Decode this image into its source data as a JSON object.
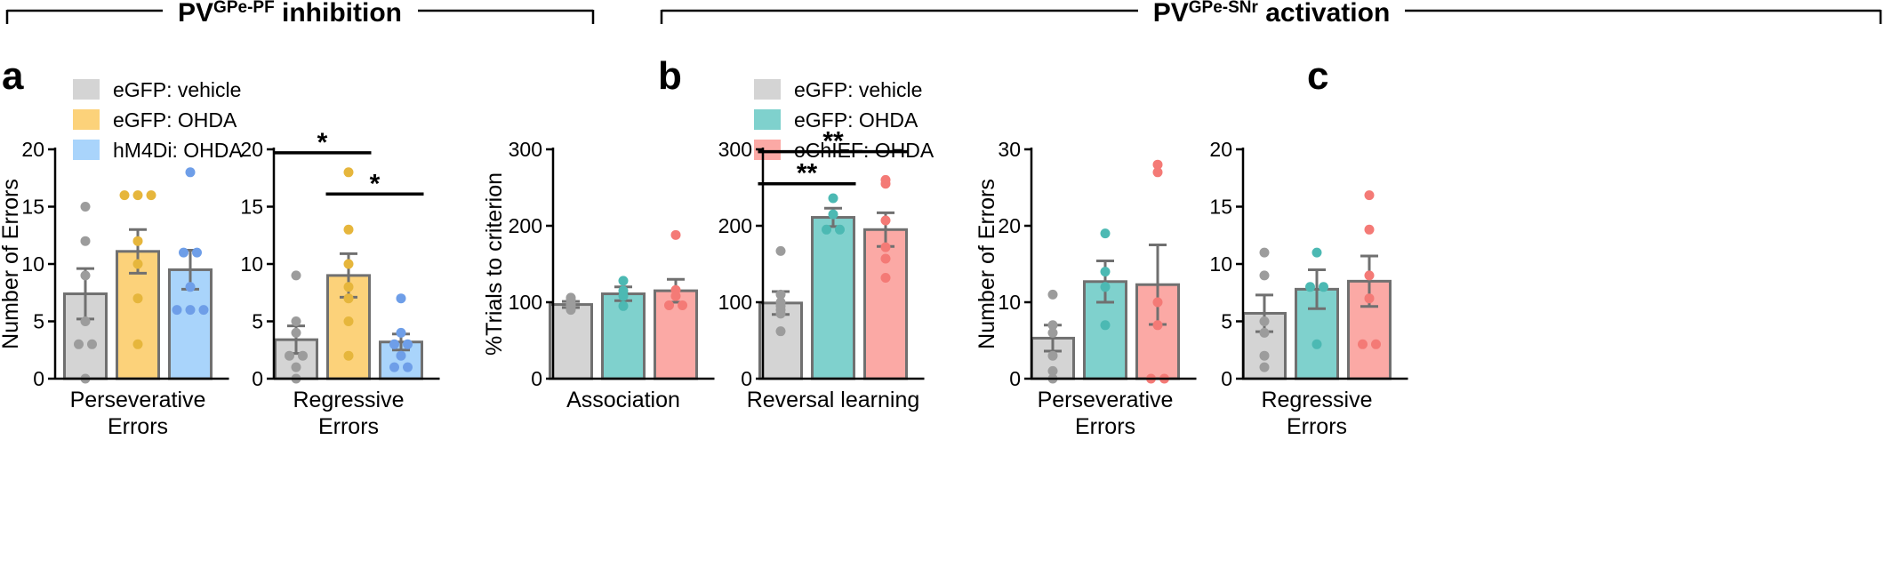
{
  "colors": {
    "egfp_vehicle": "#d4d4d4",
    "egfp_ohda_a": "#fcd27a",
    "hm4di_ohda": "#a9d4fb",
    "egfp_ohda_b": "#7fd1cd",
    "ochief_ohda": "#fba9a5",
    "dot_grey": "#9c9c9c",
    "dot_yellow": "#e6b63c",
    "dot_blue": "#6e9ee8",
    "dot_teal": "#4cb9b3",
    "dot_red": "#f47a76",
    "bar_edge": "#707070",
    "axis": "#000000"
  },
  "sections": [
    {
      "title": "PV",
      "superscript": "GPe-PF",
      "suffix": " inhibition"
    },
    {
      "title": "PV",
      "superscript": "GPe-SNr",
      "suffix": " activation"
    }
  ],
  "panel_letters": [
    "a",
    "b",
    "c"
  ],
  "legends": [
    {
      "items": [
        {
          "label": "eGFP: vehicle",
          "color_key": "egfp_vehicle"
        },
        {
          "label": "eGFP: OHDA",
          "color_key": "egfp_ohda_a"
        },
        {
          "label": "hM4Di: OHDA",
          "color_key": "hm4di_ohda"
        }
      ]
    },
    {
      "items": [
        {
          "label": "eGFP: vehicle",
          "color_key": "egfp_vehicle"
        },
        {
          "label": "eGFP: OHDA",
          "color_key": "egfp_ohda_b"
        },
        {
          "label": "oChIEF: OHDA",
          "color_key": "ochief_ohda"
        }
      ]
    }
  ],
  "chart_data": [
    {
      "type": "bar",
      "panel": "a",
      "ylabel": "Number of Errors",
      "xlabel_lines": [
        "Perseverative",
        "Errors"
      ],
      "ylim": [
        0,
        20
      ],
      "yticks": [
        0,
        5,
        10,
        15,
        20
      ],
      "series": [
        {
          "name": "eGFP: vehicle",
          "mean": 7.4,
          "sem": 2.2,
          "points": [
            15,
            12,
            9,
            5,
            3,
            3,
            0
          ]
        },
        {
          "name": "eGFP: OHDA",
          "mean": 11.1,
          "sem": 1.9,
          "points": [
            16,
            16,
            16,
            12,
            10,
            7,
            3
          ]
        },
        {
          "name": "hM4Di: OHDA",
          "mean": 9.5,
          "sem": 1.7,
          "points": [
            18,
            11,
            11,
            8,
            6,
            6,
            6
          ]
        }
      ],
      "significance": []
    },
    {
      "type": "bar",
      "panel": "a",
      "ylabel": "",
      "xlabel_lines": [
        "Regressive",
        "Errors"
      ],
      "ylim": [
        0,
        20
      ],
      "yticks": [
        0,
        5,
        10,
        15,
        20
      ],
      "series": [
        {
          "name": "eGFP: vehicle",
          "mean": 3.4,
          "sem": 1.2,
          "points": [
            9,
            5,
            4,
            2,
            2,
            1,
            0
          ]
        },
        {
          "name": "eGFP: OHDA",
          "mean": 9.0,
          "sem": 1.9,
          "points": [
            18,
            13,
            10,
            8,
            7,
            5,
            2
          ]
        },
        {
          "name": "hM4Di: OHDA",
          "mean": 3.2,
          "sem": 0.7,
          "points": [
            7,
            4,
            3,
            3,
            2,
            1,
            1
          ]
        }
      ],
      "significance": [
        {
          "from": 0,
          "to": 1,
          "y": 19.7,
          "label": "*"
        },
        {
          "from": 1,
          "to": 2,
          "y": 16.1,
          "label": "*"
        }
      ]
    },
    {
      "type": "bar",
      "panel": "b",
      "ylabel": "%Trials to criterion",
      "xlabel_lines": [
        "Association"
      ],
      "ylim": [
        0,
        300
      ],
      "yticks": [
        0,
        100,
        200,
        300
      ],
      "series": [
        {
          "name": "eGFP: vehicle",
          "mean": 97,
          "sem": 4,
          "points": [
            106,
            103,
            98,
            96,
            94,
            90
          ]
        },
        {
          "name": "eGFP: OHDA",
          "mean": 111,
          "sem": 9,
          "points": [
            128,
            115,
            108,
            95
          ]
        },
        {
          "name": "oChIEF: OHDA",
          "mean": 115,
          "sem": 15,
          "points": [
            188,
            116,
            108,
            96,
            96
          ]
        }
      ],
      "significance": []
    },
    {
      "type": "bar",
      "panel": "b",
      "ylabel": "",
      "xlabel_lines": [
        "Reversal learning"
      ],
      "ylim": [
        0,
        300
      ],
      "yticks": [
        0,
        100,
        200,
        300
      ],
      "series": [
        {
          "name": "eGFP: vehicle",
          "mean": 99,
          "sem": 15,
          "points": [
            167,
            110,
            100,
            95,
            90,
            85,
            62
          ]
        },
        {
          "name": "eGFP: OHDA",
          "mean": 211,
          "sem": 12,
          "points": [
            236,
            215,
            195,
            195
          ]
        },
        {
          "name": "oChIEF: OHDA",
          "mean": 195,
          "sem": 22,
          "points": [
            260,
            255,
            207,
            172,
            157,
            132
          ]
        }
      ],
      "significance": [
        {
          "from": 0,
          "to": 1,
          "y": 255,
          "label": "**"
        },
        {
          "from": 0,
          "to": 2,
          "y": 297,
          "label": "**"
        }
      ]
    },
    {
      "type": "bar",
      "panel": "c",
      "ylabel": "Number of Errors",
      "xlabel_lines": [
        "Perseverative",
        "Errors"
      ],
      "ylim": [
        0,
        30
      ],
      "yticks": [
        0,
        10,
        20,
        30
      ],
      "series": [
        {
          "name": "eGFP: vehicle",
          "mean": 5.3,
          "sem": 1.7,
          "points": [
            11,
            7,
            6,
            3,
            1,
            0
          ]
        },
        {
          "name": "eGFP: OHDA",
          "mean": 12.7,
          "sem": 2.7,
          "points": [
            19,
            14,
            12,
            7
          ]
        },
        {
          "name": "oChIEF: OHDA",
          "mean": 12.3,
          "sem": 5.2,
          "points": [
            28,
            27,
            10,
            7,
            0,
            0
          ]
        }
      ],
      "significance": []
    },
    {
      "type": "bar",
      "panel": "c",
      "ylabel": "",
      "xlabel_lines": [
        "Regressive",
        "Errors"
      ],
      "ylim": [
        0,
        20
      ],
      "yticks": [
        0,
        5,
        10,
        15,
        20
      ],
      "series": [
        {
          "name": "eGFP: vehicle",
          "mean": 5.7,
          "sem": 1.6,
          "points": [
            11,
            9,
            5,
            4,
            2,
            1
          ]
        },
        {
          "name": "eGFP: OHDA",
          "mean": 7.8,
          "sem": 1.7,
          "points": [
            11,
            8,
            8,
            3
          ]
        },
        {
          "name": "oChIEF: OHDA",
          "mean": 8.5,
          "sem": 2.2,
          "points": [
            16,
            13,
            9,
            7,
            3,
            3
          ]
        }
      ],
      "significance": []
    }
  ]
}
